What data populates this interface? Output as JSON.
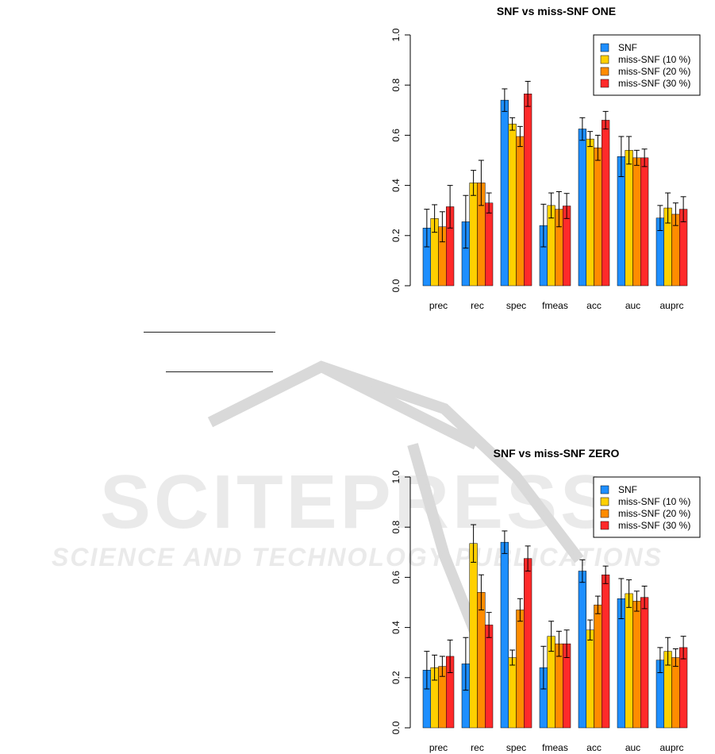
{
  "colors": {
    "series": [
      "#1e8fff",
      "#ffd000",
      "#ff8c00",
      "#ff2a2a"
    ],
    "watermark": "#d9d9d9"
  },
  "watermark": {
    "line1": "SCITEPRESS",
    "line2": "SCIENCE AND TECHNOLOGY PUBLICATIONS"
  },
  "chart_data": [
    {
      "type": "bar",
      "title": "SNF vs miss-SNF ONE",
      "xlabel": "",
      "ylabel": "",
      "ylim": [
        0,
        1
      ],
      "yticks": [
        "0.0",
        "0.2",
        "0.4",
        "0.6",
        "0.8",
        "1.0"
      ],
      "categories": [
        "prec",
        "rec",
        "spec",
        "fmeas",
        "acc",
        "auc",
        "auprc"
      ],
      "legend_position": "top-right",
      "error_bars": true,
      "series": [
        {
          "name": "SNF",
          "values": [
            0.23,
            0.255,
            0.74,
            0.24,
            0.625,
            0.515,
            0.27
          ],
          "err": [
            0.075,
            0.105,
            0.045,
            0.085,
            0.045,
            0.08,
            0.05
          ]
        },
        {
          "name": "miss-SNF (10 %)",
          "values": [
            0.268,
            0.41,
            0.645,
            0.32,
            0.585,
            0.54,
            0.31
          ],
          "err": [
            0.055,
            0.05,
            0.025,
            0.05,
            0.03,
            0.055,
            0.06
          ]
        },
        {
          "name": "miss-SNF (20 %)",
          "values": [
            0.235,
            0.41,
            0.595,
            0.305,
            0.55,
            0.51,
            0.285
          ],
          "err": [
            0.06,
            0.09,
            0.04,
            0.07,
            0.05,
            0.03,
            0.045
          ]
        },
        {
          "name": "miss-SNF (30 %)",
          "values": [
            0.315,
            0.33,
            0.765,
            0.318,
            0.66,
            0.51,
            0.305
          ],
          "err": [
            0.085,
            0.04,
            0.05,
            0.05,
            0.035,
            0.035,
            0.05
          ]
        }
      ]
    },
    {
      "type": "bar",
      "title": "SNF vs miss-SNF ZERO",
      "xlabel": "",
      "ylabel": "",
      "ylim": [
        0,
        1
      ],
      "yticks": [
        "0.0",
        "0.2",
        "0.4",
        "0.6",
        "0.8",
        "1.0"
      ],
      "categories": [
        "prec",
        "rec",
        "spec",
        "fmeas",
        "acc",
        "auc",
        "auprc"
      ],
      "legend_position": "top-right",
      "error_bars": true,
      "series": [
        {
          "name": "SNF",
          "values": [
            0.23,
            0.255,
            0.74,
            0.24,
            0.625,
            0.515,
            0.27
          ],
          "err": [
            0.075,
            0.105,
            0.045,
            0.085,
            0.045,
            0.08,
            0.05
          ]
        },
        {
          "name": "miss-SNF (10 %)",
          "values": [
            0.24,
            0.735,
            0.28,
            0.365,
            0.39,
            0.535,
            0.305
          ],
          "err": [
            0.05,
            0.075,
            0.03,
            0.06,
            0.04,
            0.055,
            0.055
          ]
        },
        {
          "name": "miss-SNF (20 %)",
          "values": [
            0.245,
            0.54,
            0.47,
            0.335,
            0.49,
            0.505,
            0.28
          ],
          "err": [
            0.04,
            0.07,
            0.045,
            0.05,
            0.035,
            0.04,
            0.035
          ]
        },
        {
          "name": "miss-SNF (30 %)",
          "values": [
            0.285,
            0.41,
            0.675,
            0.335,
            0.61,
            0.52,
            0.32
          ],
          "err": [
            0.065,
            0.05,
            0.05,
            0.055,
            0.035,
            0.045,
            0.045
          ]
        }
      ]
    }
  ]
}
